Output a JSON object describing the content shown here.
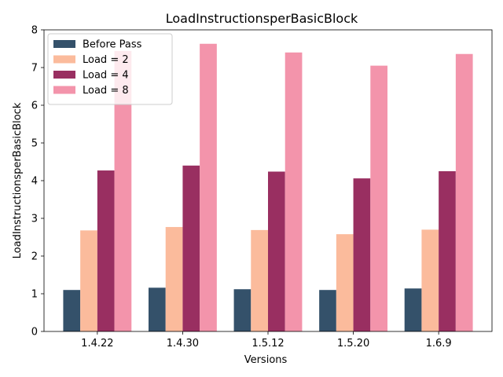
{
  "chart_data": {
    "type": "bar",
    "title": "LoadInstructionsperBasicBlock",
    "xlabel": "Versions",
    "ylabel": "LoadInstructionsperBasicBlock",
    "categories": [
      "1.4.22",
      "1.4.30",
      "1.5.12",
      "1.5.20",
      "1.6.9"
    ],
    "ylim": [
      0,
      8
    ],
    "yticks": [
      "0",
      "1",
      "2",
      "3",
      "4",
      "5",
      "6",
      "7",
      "8"
    ],
    "grid": false,
    "legend_position": "top-left",
    "series": [
      {
        "name": "Before Pass",
        "color": "#34516a",
        "values": [
          1.1,
          1.16,
          1.12,
          1.1,
          1.14
        ]
      },
      {
        "name": "Load = 2",
        "color": "#fbbb9c",
        "values": [
          2.68,
          2.77,
          2.69,
          2.58,
          2.7
        ]
      },
      {
        "name": "Load = 4",
        "color": "#992f61",
        "values": [
          4.27,
          4.4,
          4.24,
          4.06,
          4.25
        ]
      },
      {
        "name": "Load = 8",
        "color": "#f394ab",
        "values": [
          7.44,
          7.63,
          7.4,
          7.05,
          7.36
        ]
      }
    ]
  }
}
